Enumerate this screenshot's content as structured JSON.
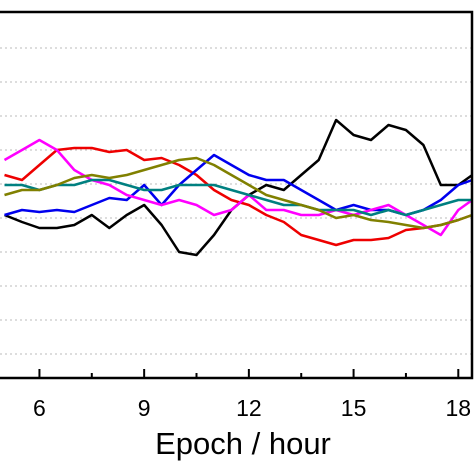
{
  "chart_data": {
    "type": "line",
    "x_label": "Epoch / hour",
    "x": [
      5,
      5.5,
      6,
      6.5,
      7,
      7.5,
      8,
      8.5,
      9,
      9.5,
      10,
      10.5,
      11,
      11.5,
      12,
      12.5,
      13,
      13.5,
      14,
      14.5,
      15,
      15.5,
      16,
      16.5,
      17,
      17.5,
      18,
      18.4
    ],
    "xlim": [
      4.87,
      18.45
    ],
    "xticks": [
      6,
      9,
      12,
      15,
      18
    ],
    "ylim": [
      0,
      366
    ],
    "grid": true,
    "series": [
      {
        "color": "#000000",
        "values": [
          163,
          156,
          150,
          150,
          153,
          163,
          150,
          163,
          173,
          153,
          126,
          123,
          143,
          168,
          183,
          193,
          188,
          203,
          218,
          258,
          243,
          238,
          253,
          248,
          233,
          193,
          193,
          203
        ]
      },
      {
        "color": "#ee0000",
        "values": [
          203,
          198,
          213,
          228,
          230,
          230,
          226,
          228,
          218,
          220,
          213,
          203,
          188,
          178,
          173,
          163,
          156,
          143,
          138,
          133,
          138,
          138,
          140,
          148,
          150,
          153,
          158,
          163
        ]
      },
      {
        "color": "#0000ee",
        "values": [
          163,
          168,
          166,
          168,
          166,
          173,
          180,
          178,
          193,
          173,
          193,
          208,
          223,
          213,
          203,
          198,
          198,
          188,
          178,
          168,
          173,
          168,
          168,
          163,
          168,
          178,
          193,
          198
        ]
      },
      {
        "color": "#ff00ff",
        "values": [
          218,
          228,
          238,
          228,
          208,
          198,
          193,
          183,
          178,
          173,
          178,
          173,
          163,
          168,
          183,
          168,
          168,
          163,
          163,
          168,
          163,
          168,
          173,
          163,
          153,
          143,
          168,
          178
        ]
      },
      {
        "color": "#008080",
        "values": [
          193,
          193,
          188,
          193,
          193,
          198,
          198,
          193,
          188,
          188,
          193,
          193,
          193,
          188,
          183,
          178,
          173,
          173,
          168,
          168,
          168,
          163,
          168,
          163,
          168,
          173,
          178,
          178
        ]
      },
      {
        "color": "#808000",
        "values": [
          183,
          188,
          188,
          193,
          200,
          203,
          200,
          203,
          208,
          213,
          218,
          220,
          213,
          203,
          193,
          183,
          178,
          173,
          168,
          160,
          163,
          158,
          156,
          153,
          150,
          153,
          158,
          163
        ]
      }
    ]
  }
}
